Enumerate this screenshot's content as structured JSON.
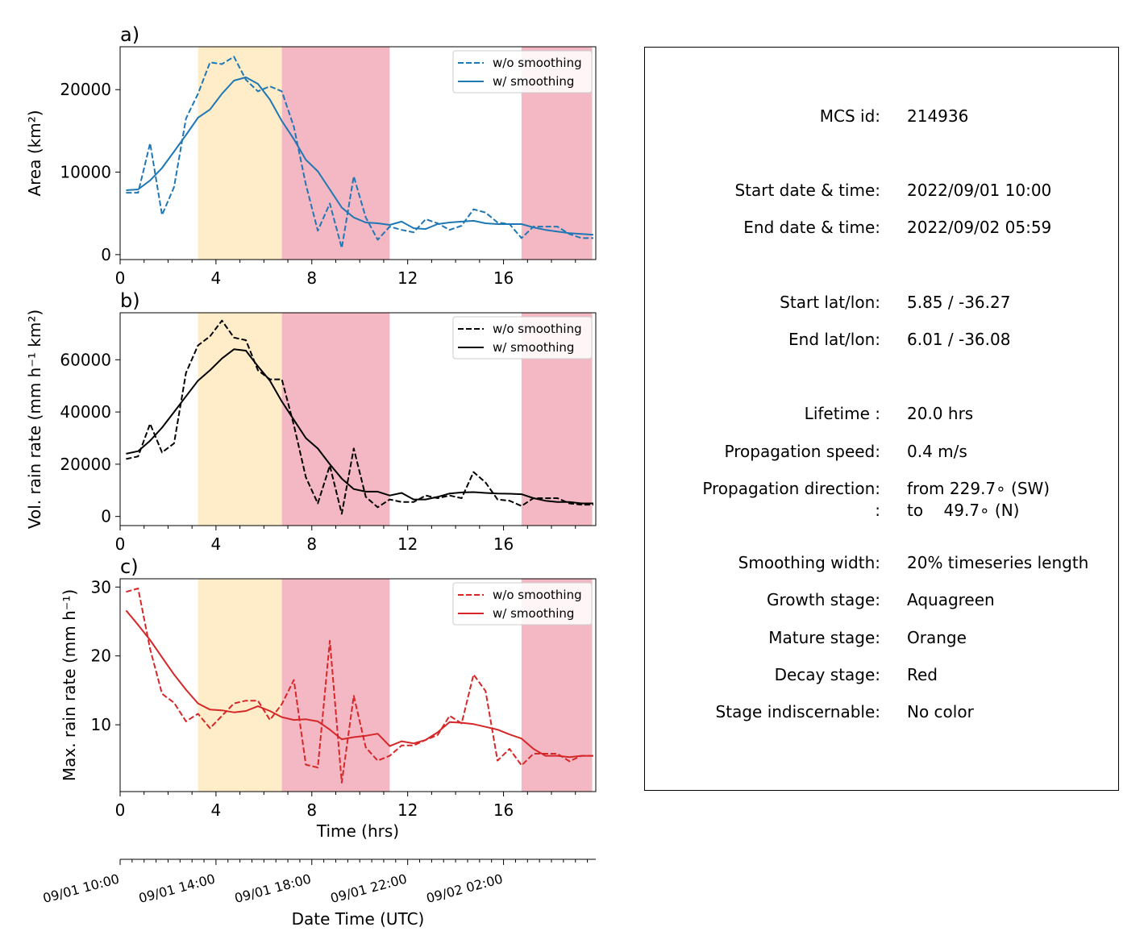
{
  "colors": {
    "panel_a": "#1f77b4",
    "panel_b": "#000000",
    "panel_c": "#d62728",
    "mature_shade": "#ffecc8",
    "decay_shade": "#f4b8c4"
  },
  "stage_spans": [
    {
      "stage": "mature",
      "start": 3.25,
      "end": 6.75
    },
    {
      "stage": "decay",
      "start": 6.75,
      "end": 11.25
    },
    {
      "stage": "decay",
      "start": 16.75,
      "end": 19.7
    }
  ],
  "chart_data": [
    {
      "type": "line",
      "panel_label": "a)",
      "ylabel": "Area  (km²)",
      "xlim": [
        0,
        19.85
      ],
      "ylim": [
        -600,
        25200
      ],
      "yticks": [
        0,
        10000,
        20000
      ],
      "yticklabels": [
        "0",
        "10000",
        "20000"
      ],
      "xticks": [
        0,
        4,
        8,
        12,
        16
      ],
      "xticklabels": [
        "0",
        "4",
        "8",
        "12",
        "16"
      ],
      "legend_position": "upper right",
      "series": [
        {
          "name": "w/o smoothing",
          "style": "dashed",
          "x": [
            0.25,
            0.75,
            1.25,
            1.75,
            2.25,
            2.75,
            3.25,
            3.75,
            4.25,
            4.75,
            5.25,
            5.75,
            6.25,
            6.75,
            7.25,
            7.75,
            8.25,
            8.75,
            9.25,
            9.75,
            10.25,
            10.75,
            11.25,
            11.75,
            12.25,
            12.75,
            13.25,
            13.75,
            14.25,
            14.75,
            15.25,
            15.75,
            16.25,
            16.75,
            17.25,
            17.75,
            18.25,
            18.75,
            19.25,
            19.75
          ],
          "values": [
            7500,
            7500,
            13500,
            4800,
            8200,
            16500,
            19500,
            23300,
            23100,
            24000,
            21200,
            19800,
            20400,
            19800,
            15500,
            8500,
            2900,
            6200,
            800,
            9500,
            4500,
            1800,
            3400,
            3000,
            2700,
            4300,
            3800,
            3000,
            3500,
            5500,
            5100,
            3900,
            3700,
            2000,
            3400,
            3400,
            3400,
            2500,
            2000,
            2000
          ]
        },
        {
          "name": "w/ smoothing",
          "style": "solid",
          "x": [
            0.25,
            0.75,
            1.25,
            1.75,
            2.25,
            2.75,
            3.25,
            3.75,
            4.25,
            4.75,
            5.25,
            5.75,
            6.25,
            6.75,
            7.25,
            7.75,
            8.25,
            8.75,
            9.25,
            9.75,
            10.25,
            10.75,
            11.25,
            11.75,
            12.25,
            12.75,
            13.25,
            13.75,
            14.25,
            14.75,
            15.25,
            15.75,
            16.25,
            16.75,
            17.25,
            17.75,
            18.25,
            18.75,
            19.25,
            19.75
          ],
          "values": [
            7800,
            7900,
            9000,
            10500,
            12500,
            14500,
            16600,
            17600,
            19500,
            21100,
            21500,
            20700,
            18800,
            16200,
            14000,
            11500,
            10100,
            7900,
            5700,
            4500,
            3900,
            3800,
            3600,
            4000,
            3200,
            3100,
            3700,
            3900,
            4000,
            4100,
            3800,
            3700,
            3700,
            3700,
            3300,
            3000,
            2800,
            2600,
            2500,
            2400
          ]
        }
      ]
    },
    {
      "type": "line",
      "panel_label": "b)",
      "ylabel": "Vol. rain rate (mm h⁻¹ km²)",
      "xlim": [
        0,
        19.85
      ],
      "ylim": [
        -3500,
        78000
      ],
      "yticks": [
        0,
        20000,
        40000,
        60000
      ],
      "yticklabels": [
        "0",
        "20000",
        "40000",
        "60000"
      ],
      "xticks": [
        0,
        4,
        8,
        12,
        16
      ],
      "xticklabels": [
        "0",
        "4",
        "8",
        "12",
        "16"
      ],
      "legend_position": "upper right",
      "series": [
        {
          "name": "w/o smoothing",
          "style": "dashed",
          "x": [
            0.25,
            0.75,
            1.25,
            1.75,
            2.25,
            2.75,
            3.25,
            3.75,
            4.25,
            4.75,
            5.25,
            5.75,
            6.25,
            6.75,
            7.25,
            7.75,
            8.25,
            8.75,
            9.25,
            9.75,
            10.25,
            10.75,
            11.25,
            11.75,
            12.25,
            12.75,
            13.25,
            13.75,
            14.25,
            14.75,
            15.25,
            15.75,
            16.25,
            16.75,
            17.25,
            17.75,
            18.25,
            18.75,
            19.25,
            19.75
          ],
          "values": [
            22000,
            23000,
            35500,
            24500,
            28000,
            55000,
            65500,
            69000,
            75000,
            68500,
            67500,
            56000,
            52500,
            52500,
            35000,
            15000,
            5000,
            19500,
            1000,
            26000,
            7500,
            3500,
            6500,
            5500,
            5500,
            8000,
            7000,
            8000,
            7000,
            17000,
            13000,
            6500,
            6000,
            4000,
            7000,
            7000,
            7000,
            5000,
            4500,
            4500
          ]
        },
        {
          "name": "w/ smoothing",
          "style": "solid",
          "x": [
            0.25,
            0.75,
            1.25,
            1.75,
            2.25,
            2.75,
            3.25,
            3.75,
            4.25,
            4.75,
            5.25,
            5.75,
            6.25,
            6.75,
            7.25,
            7.75,
            8.25,
            8.75,
            9.25,
            9.75,
            10.25,
            10.75,
            11.25,
            11.75,
            12.25,
            12.75,
            13.25,
            13.75,
            14.25,
            14.75,
            15.25,
            15.75,
            16.25,
            16.75,
            17.25,
            17.75,
            18.25,
            18.75,
            19.25,
            19.75
          ],
          "values": [
            24000,
            25000,
            29000,
            34000,
            40000,
            46000,
            52000,
            56000,
            60500,
            64000,
            63500,
            57500,
            52000,
            44000,
            37000,
            30000,
            26000,
            20000,
            14500,
            10500,
            9500,
            9500,
            8000,
            9000,
            6500,
            6500,
            7500,
            8800,
            9200,
            9300,
            9000,
            8800,
            8700,
            8500,
            7000,
            6000,
            5500,
            5500,
            5000,
            5000
          ]
        }
      ]
    },
    {
      "type": "line",
      "panel_label": "c)",
      "ylabel": "Max. rain rate  (mm h⁻¹)",
      "xlabel": "Time (hrs)",
      "xlim": [
        0,
        19.85
      ],
      "ylim": [
        0.3,
        31.2
      ],
      "yticks": [
        10,
        20,
        30
      ],
      "yticklabels": [
        "10",
        "20",
        "30"
      ],
      "xticks": [
        0,
        4,
        8,
        12,
        16
      ],
      "xticklabels": [
        "0",
        "4",
        "8",
        "12",
        "16"
      ],
      "legend_position": "upper right",
      "series": [
        {
          "name": "w/o smoothing",
          "style": "dashed",
          "x": [
            0.25,
            0.75,
            1.25,
            1.75,
            2.25,
            2.75,
            3.25,
            3.75,
            4.25,
            4.75,
            5.25,
            5.75,
            6.25,
            6.75,
            7.25,
            7.75,
            8.25,
            8.75,
            9.25,
            9.75,
            10.25,
            10.75,
            11.25,
            11.75,
            12.25,
            12.75,
            13.25,
            13.75,
            14.25,
            14.75,
            15.25,
            15.75,
            16.25,
            16.75,
            17.25,
            17.75,
            18.25,
            18.75,
            19.25,
            19.75
          ],
          "values": [
            29.3,
            29.8,
            21.0,
            14.5,
            13.2,
            10.5,
            11.6,
            9.5,
            11.3,
            13.1,
            13.5,
            13.5,
            10.7,
            13.0,
            16.5,
            4.2,
            3.8,
            22.2,
            1.6,
            14.2,
            6.7,
            4.8,
            5.5,
            7.0,
            7.0,
            7.8,
            8.5,
            11.3,
            10.2,
            17.3,
            14.9,
            4.8,
            6.5,
            4.1,
            5.8,
            5.8,
            5.8,
            4.7,
            5.5,
            5.5
          ]
        },
        {
          "name": "w/ smoothing",
          "style": "solid",
          "x": [
            0.25,
            0.75,
            1.25,
            1.75,
            2.25,
            2.75,
            3.25,
            3.75,
            4.25,
            4.75,
            5.25,
            5.75,
            6.25,
            6.75,
            7.25,
            7.75,
            8.25,
            8.75,
            9.25,
            9.75,
            10.25,
            10.75,
            11.25,
            11.75,
            12.25,
            12.75,
            13.25,
            13.75,
            14.25,
            14.75,
            15.25,
            15.75,
            16.25,
            16.75,
            17.25,
            17.75,
            18.25,
            18.75,
            19.25,
            19.75
          ],
          "values": [
            26.6,
            24.5,
            22.3,
            19.8,
            17.3,
            15.1,
            13.1,
            12.2,
            12.1,
            11.8,
            12.0,
            12.7,
            12.0,
            11.1,
            10.7,
            10.8,
            10.5,
            9.3,
            7.9,
            8.2,
            8.4,
            8.7,
            6.9,
            7.6,
            7.3,
            7.8,
            8.9,
            10.4,
            10.3,
            10.1,
            9.7,
            9.3,
            8.6,
            8.0,
            6.5,
            5.5,
            5.5,
            5.3,
            5.5,
            5.5
          ]
        }
      ]
    }
  ],
  "secondary_axis": {
    "label": "Date Time (UTC)",
    "tick_hours": [
      0,
      4,
      8,
      12,
      16
    ],
    "ticklabels": [
      "09/01 10:00",
      "09/01 14:00",
      "09/01 18:00",
      "09/01 22:00",
      "09/02 02:00"
    ]
  },
  "info": {
    "rows": [
      {
        "label": "MCS id:",
        "value": "214936"
      },
      {
        "label": "Start date & time:",
        "value": "2022/09/01 10:00"
      },
      {
        "label": "End date & time:",
        "value": "2022/09/02 05:59"
      },
      {
        "label": "Start lat/lon:",
        "value": "5.85 / -36.27"
      },
      {
        "label": "End lat/lon:",
        "value": "6.01 / -36.08"
      },
      {
        "label": "Lifetime :",
        "value": "20.0 hrs"
      },
      {
        "label": "Propagation speed:",
        "value": "0.4 m/s"
      },
      {
        "label": "Propagation direction:",
        "value": "from 229.7∘ (SW)"
      },
      {
        "label": ":",
        "value": "to    49.7∘ (N)"
      },
      {
        "label": "Smoothing width:",
        "value": "20% timeseries length"
      },
      {
        "label": "Growth stage:",
        "value": "Aquagreen"
      },
      {
        "label": "Mature stage:",
        "value": "Orange"
      },
      {
        "label": "Decay stage:",
        "value": "Red"
      },
      {
        "label": "Stage indiscernable:",
        "value": "No color"
      }
    ]
  }
}
